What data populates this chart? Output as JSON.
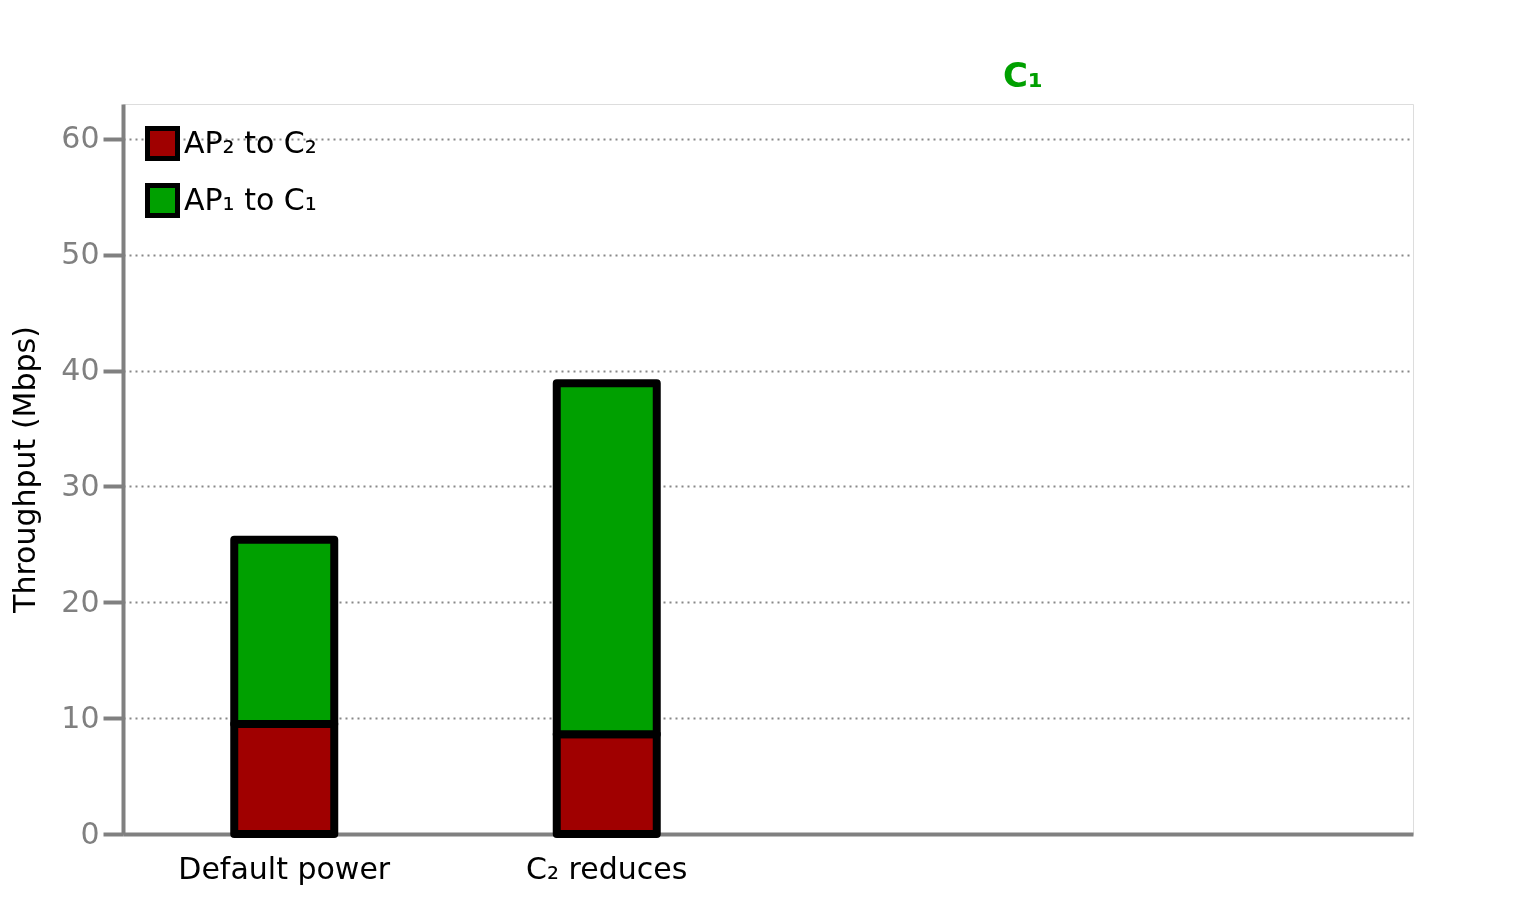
{
  "chart_data": {
    "type": "bar",
    "stacked": true,
    "ylabel": "Throughput (Mbps)",
    "categories": [
      "Default power",
      "C₂ reduces",
      null,
      null
    ],
    "series": [
      {
        "name": "AP₂ to C₂",
        "color": "#a00000",
        "values": [
          9.5,
          8.6,
          null,
          null
        ]
      },
      {
        "name": "AP₁ to C₁",
        "color": "#00a000",
        "values": [
          15.9,
          30.3,
          null,
          null
        ]
      }
    ],
    "ylim": [
      0,
      63
    ],
    "yticks": [
      0,
      10,
      20,
      30,
      40,
      50,
      60
    ],
    "grid": "y",
    "legend": "top left",
    "annotations": [
      "C₁"
    ]
  }
}
